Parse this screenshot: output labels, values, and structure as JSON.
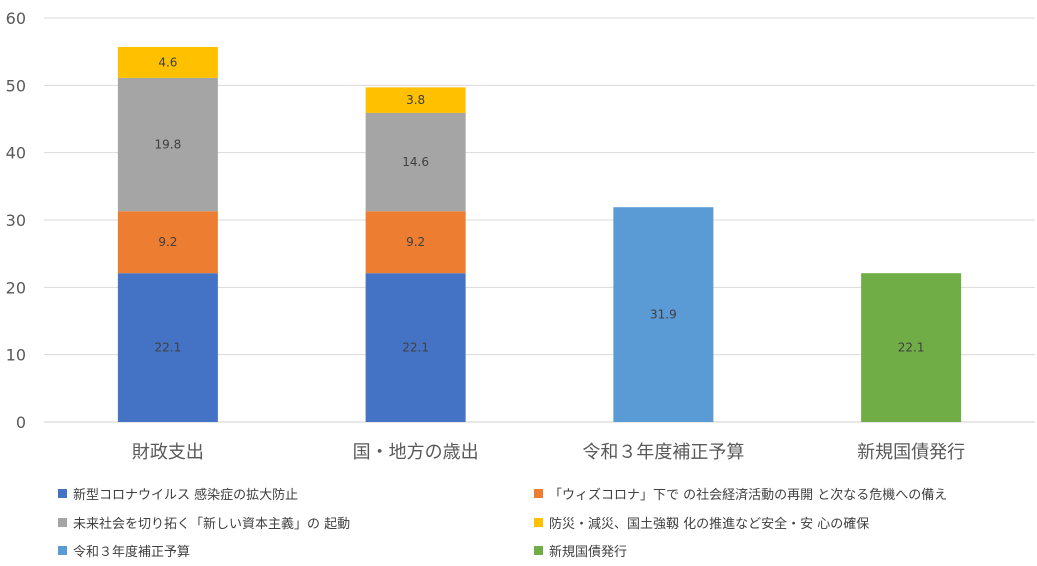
{
  "chart_data": {
    "type": "bar",
    "stacked": true,
    "ylim": [
      0,
      60
    ],
    "yticks": [
      "0",
      "10",
      "20",
      "30",
      "40",
      "50",
      "60"
    ],
    "ytick_values": [
      0,
      10,
      20,
      30,
      40,
      50,
      60
    ],
    "grid": true,
    "legend_position": "bottom",
    "categories": [
      "財政支出",
      "国・地方の歳出",
      "令和３年度補正予算",
      "新規国債発行"
    ],
    "series": [
      {
        "name": "新型コロナウイルス 感染症の拡大防止",
        "color": "#4472C4",
        "values": [
          22.1,
          22.1,
          null,
          null
        ]
      },
      {
        "name": "「ウィズコロナ」下で の社会経済活動の再開 と次なる危機への備え",
        "color": "#ED7D31",
        "values": [
          9.2,
          9.2,
          null,
          null
        ]
      },
      {
        "name": "未来社会を切り拓く「新しい資本主義」の 起動",
        "color": "#A5A5A5",
        "values": [
          19.8,
          14.6,
          null,
          null
        ]
      },
      {
        "name": "防災・減災、国土強靱 化の推進など安全・安 心の確保",
        "color": "#FFC000",
        "values": [
          4.6,
          3.8,
          null,
          null
        ]
      },
      {
        "name": "令和３年度補正予算",
        "color": "#5B9BD5",
        "values": [
          null,
          null,
          31.9,
          null
        ]
      },
      {
        "name": "新規国債発行",
        "color": "#70AD47",
        "values": [
          null,
          null,
          null,
          22.1
        ]
      }
    ]
  }
}
